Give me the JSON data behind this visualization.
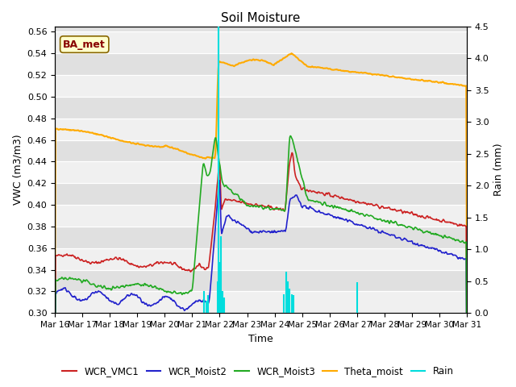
{
  "title": "Soil Moisture",
  "xlabel": "Time",
  "ylabel_left": "VWC (m3/m3)",
  "ylabel_right": "Rain (mm)",
  "ylim_left": [
    0.3,
    0.565
  ],
  "ylim_right": [
    0.0,
    4.5
  ],
  "xtick_labels": [
    "Mar 16",
    "Mar 17",
    "Mar 18",
    "Mar 19",
    "Mar 20",
    "Mar 21",
    "Mar 22",
    "Mar 23",
    "Mar 24",
    "Mar 25",
    "Mar 26",
    "Mar 27",
    "Mar 28",
    "Mar 29",
    "Mar 30",
    "Mar 31"
  ],
  "ytick_left": [
    0.3,
    0.32,
    0.34,
    0.36,
    0.38,
    0.4,
    0.42,
    0.44,
    0.46,
    0.48,
    0.5,
    0.52,
    0.54,
    0.56
  ],
  "ytick_right": [
    0.0,
    0.5,
    1.0,
    1.5,
    2.0,
    2.5,
    3.0,
    3.5,
    4.0,
    4.5
  ],
  "background_color": "#ffffff",
  "plot_bg_color_light": "#f0f0f0",
  "plot_bg_color_dark": "#e0e0e0",
  "grid_color": "#ffffff",
  "colors": {
    "wcr1": "#cc2222",
    "wcr2": "#2222cc",
    "wcr3": "#22aa22",
    "theta": "#ffaa00",
    "rain": "#00dddd"
  },
  "annotation_text": "BA_met",
  "annotation_color": "#880000",
  "annotation_bg": "#ffffcc",
  "annotation_border": "#886600"
}
